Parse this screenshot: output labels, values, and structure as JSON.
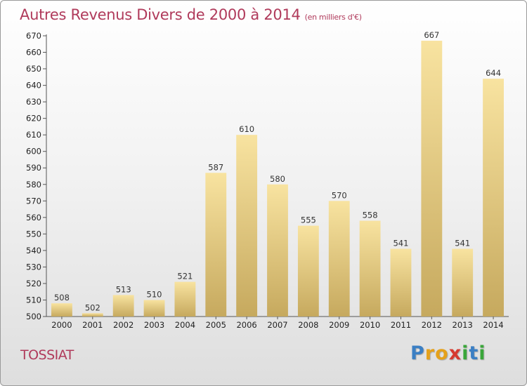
{
  "chart_data": {
    "type": "bar",
    "title": "Autres Revenus Divers de 2000 à 2014",
    "subtitle": "(en milliers d'€)",
    "categories": [
      "2000",
      "2001",
      "2002",
      "2003",
      "2004",
      "2005",
      "2006",
      "2007",
      "2008",
      "2009",
      "2010",
      "2011",
      "2012",
      "2013",
      "2014"
    ],
    "values": [
      508,
      502,
      513,
      510,
      521,
      587,
      610,
      580,
      555,
      570,
      558,
      541,
      667,
      541,
      644
    ],
    "ylim": [
      500,
      670
    ],
    "ytick_step": 10,
    "grid": false,
    "bar_color": "#d9bf75"
  },
  "place_name": "TOSSIAT",
  "logo": {
    "letters": [
      "P",
      "r",
      "o",
      "x",
      "i",
      "t",
      "i"
    ],
    "colors": [
      "#3b7fc4",
      "#e5a11b",
      "#e5a11b",
      "#d63a2f",
      "#3aa63a",
      "#3b7fc4",
      "#3aa63a"
    ]
  }
}
